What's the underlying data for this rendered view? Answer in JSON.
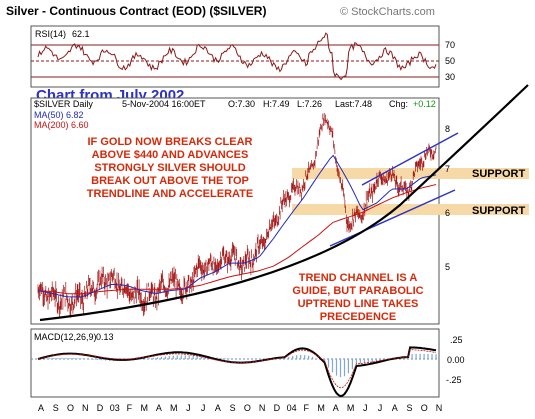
{
  "header": {
    "title": "Silver - Continuous Contract (EOD) ($SILVER)",
    "watermark": "© StockCharts.com"
  },
  "rsi_panel": {
    "label": "RSI(14)",
    "value": "62.1",
    "ticks": [
      "70",
      "50",
      "30"
    ]
  },
  "annotation_date": "Chart from July 2002",
  "price_header": {
    "symbol": "$SILVER Daily",
    "date": "5-Nov-2004 16:00ET",
    "open": "O:7.30",
    "high": "H:7.49",
    "low": "L:7.26",
    "last": "Last:7.48",
    "chg_label": "Chg:",
    "chg_value": "+0.12"
  },
  "legend": {
    "ma50": "MA(50) 6.82",
    "ma200": "MA(200) 6.60"
  },
  "price_axis": [
    "8",
    "7",
    "6",
    "5"
  ],
  "annotations": {
    "gold_note": [
      "IF GOLD NOW BREAKS CLEAR",
      "ABOVE $440 AND ADVANCES",
      "STRONGLY SILVER SHOULD",
      "BREAK OUT ABOVE THE TOP",
      "TRENDLINE AND ACCELERATE"
    ],
    "support1": "SUPPORT",
    "support2": "SUPPORT",
    "trend_note": [
      "TREND CHANNEL IS A",
      "GUIDE, BUT PARABOLIC",
      "UPTREND LINE TAKES",
      "PRECEDENCE"
    ]
  },
  "macd_panel": {
    "label": "MACD(12,26,9)",
    "value": "0.13",
    "ticks": [
      "0.25",
      "0.00",
      "-0.25"
    ]
  },
  "months": [
    "A",
    "S",
    "O",
    "N",
    "D",
    "03",
    "F",
    "M",
    "A",
    "M",
    "J",
    "J",
    "A",
    "S",
    "O",
    "N",
    "D",
    "04",
    "F",
    "M",
    "A",
    "M",
    "J",
    "J",
    "A",
    "S",
    "O",
    "N"
  ],
  "colors": {
    "annotation_red": "#d62a0a",
    "annotation_blue": "#2b32c8",
    "support_band": "#f7d9a8",
    "ma50": "#1f2bbf",
    "ma200": "#cc1111",
    "price": "#a01010",
    "macd_hist": "#7fa8d8"
  },
  "chart_data": {
    "type": "line",
    "x": [
      "2002-08",
      "2002-09",
      "2002-10",
      "2002-11",
      "2002-12",
      "2003-01",
      "2003-02",
      "2003-03",
      "2003-04",
      "2003-05",
      "2003-06",
      "2003-07",
      "2003-08",
      "2003-09",
      "2003-10",
      "2003-11",
      "2003-12",
      "2004-01",
      "2004-02",
      "2004-03",
      "2004-04",
      "2004-05",
      "2004-06",
      "2004-07",
      "2004-08",
      "2004-09",
      "2004-10",
      "2004-11"
    ],
    "series": [
      {
        "name": "$SILVER Daily",
        "values": [
          4.6,
          4.5,
          4.45,
          4.5,
          4.7,
          4.8,
          4.6,
          4.5,
          4.55,
          4.75,
          4.6,
          5.0,
          5.0,
          5.2,
          5.0,
          5.3,
          5.8,
          6.4,
          6.6,
          7.3,
          7.6,
          5.8,
          6.0,
          6.7,
          6.8,
          6.4,
          7.2,
          7.48
        ]
      },
      {
        "name": "MA(50) 6.82",
        "values": [
          4.6,
          4.55,
          4.5,
          4.5,
          4.6,
          4.7,
          4.68,
          4.6,
          4.55,
          4.6,
          4.62,
          4.8,
          4.9,
          5.05,
          5.05,
          5.15,
          5.5,
          5.9,
          6.3,
          6.8,
          7.3,
          6.7,
          6.05,
          6.2,
          6.5,
          6.5,
          6.75,
          6.82
        ]
      },
      {
        "name": "MA(200) 6.60",
        "values": [
          4.6,
          4.58,
          4.55,
          4.55,
          4.58,
          4.6,
          4.62,
          4.62,
          4.62,
          4.62,
          4.64,
          4.68,
          4.75,
          4.82,
          4.87,
          4.92,
          5.0,
          5.15,
          5.35,
          5.55,
          5.8,
          5.9,
          6.0,
          6.15,
          6.3,
          6.42,
          6.52,
          6.6
        ]
      }
    ],
    "rsi": {
      "label": "RSI(14)",
      "last": 62.1,
      "ylim": [
        20,
        85
      ],
      "levels": [
        70,
        50,
        30
      ]
    },
    "macd": {
      "label": "MACD(12,26,9)",
      "last": 0.13,
      "ticks": [
        0.25,
        0.0,
        -0.25
      ]
    },
    "ylim": [
      4.2,
      8.4
    ],
    "support_levels": [
      6.8,
      6.1
    ],
    "log_scale": true
  }
}
